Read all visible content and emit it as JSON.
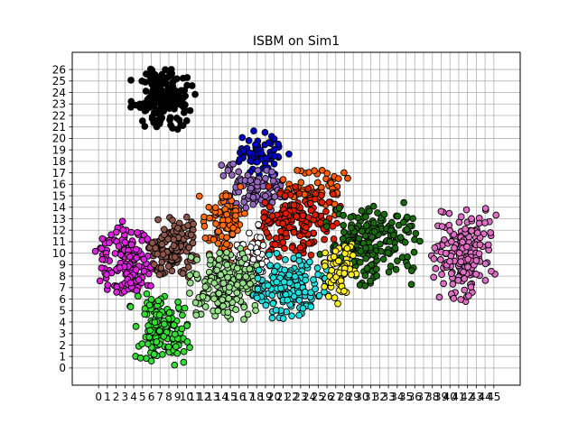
{
  "chart_data": {
    "type": "scatter",
    "title": "ISBM on Sim1",
    "xlabel": "",
    "ylabel": "",
    "xlim": [
      -3.0,
      48.0
    ],
    "ylim": [
      -1.5,
      27.5
    ],
    "grid": true,
    "legend": "none",
    "x_ticks": [
      0,
      1,
      2,
      3,
      4,
      5,
      6,
      7,
      8,
      9,
      10,
      11,
      12,
      13,
      14,
      15,
      16,
      17,
      18,
      19,
      20,
      21,
      22,
      23,
      24,
      25,
      26,
      27,
      28,
      29,
      30,
      31,
      32,
      33,
      34,
      35,
      36,
      37,
      38,
      39,
      40,
      41,
      42,
      43,
      44,
      45
    ],
    "y_ticks": [
      0,
      1,
      2,
      3,
      4,
      5,
      6,
      7,
      8,
      9,
      10,
      11,
      12,
      13,
      14,
      15,
      16,
      17,
      18,
      19,
      20,
      21,
      22,
      23,
      24,
      25,
      26
    ],
    "clusters": [
      {
        "color": "#000000",
        "cx": 7.5,
        "cy": 23.5,
        "sx": 1.7,
        "sy": 1.3,
        "n": 170
      },
      {
        "color": "#0000cc",
        "cx": 18.5,
        "cy": 18.6,
        "sx": 1.4,
        "sy": 0.9,
        "n": 70
      },
      {
        "color": "#9467bd",
        "cx": 17.8,
        "cy": 15.6,
        "sx": 1.8,
        "sy": 1.0,
        "n": 90
      },
      {
        "color": "#ff6a13",
        "cx": 14.2,
        "cy": 12.6,
        "sx": 1.3,
        "sy": 1.6,
        "n": 90
      },
      {
        "color": "#ff5a00",
        "cx": 25.0,
        "cy": 15.5,
        "sx": 2.0,
        "sy": 1.0,
        "n": 60
      },
      {
        "color": "#dd1e00",
        "cx": 22.5,
        "cy": 12.7,
        "sx": 2.3,
        "sy": 1.5,
        "n": 170
      },
      {
        "color": "#1a6b10",
        "cx": 30.8,
        "cy": 10.8,
        "sx": 2.6,
        "sy": 1.6,
        "n": 200
      },
      {
        "color": "#de6fc4",
        "cx": 41.5,
        "cy": 10.0,
        "sx": 1.7,
        "sy": 1.9,
        "n": 170
      },
      {
        "color": "#dd22dd",
        "cx": 3.3,
        "cy": 9.3,
        "sx": 1.6,
        "sy": 1.6,
        "n": 150
      },
      {
        "color": "#8c564b",
        "cx": 8.5,
        "cy": 10.6,
        "sx": 1.5,
        "sy": 1.4,
        "n": 140
      },
      {
        "color": "#ffffff",
        "cx": 17.4,
        "cy": 9.5,
        "sx": 1.0,
        "sy": 1.3,
        "n": 60
      },
      {
        "color": "#98df8a",
        "cx": 14.5,
        "cy": 7.2,
        "sx": 1.9,
        "sy": 1.4,
        "n": 180
      },
      {
        "color": "#22dddd",
        "cx": 22.0,
        "cy": 7.0,
        "sx": 2.0,
        "sy": 1.3,
        "n": 160
      },
      {
        "color": "#ffee22",
        "cx": 27.3,
        "cy": 8.2,
        "sx": 1.1,
        "sy": 1.3,
        "n": 60
      },
      {
        "color": "#33dd33",
        "cx": 7.0,
        "cy": 3.6,
        "sx": 1.5,
        "sy": 1.5,
        "n": 150
      }
    ]
  }
}
